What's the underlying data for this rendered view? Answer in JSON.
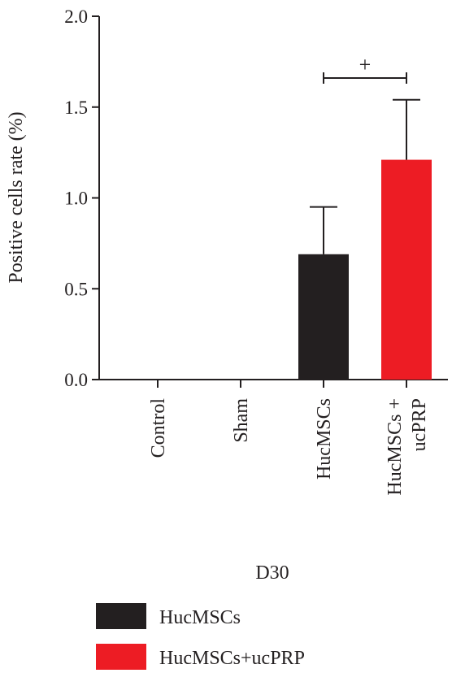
{
  "chart_data": {
    "type": "bar",
    "ylabel": "Positive cells rate (%)",
    "xlabel": "D30",
    "ylim": [
      0,
      2.0
    ],
    "yticks": [
      "0.0",
      "0.5",
      "1.0",
      "1.5",
      "2.0"
    ],
    "categories": [
      {
        "lines": [
          "Control"
        ]
      },
      {
        "lines": [
          "Sham"
        ]
      },
      {
        "lines": [
          "HucMSCs"
        ]
      },
      {
        "lines": [
          "HucMSCs +",
          "ucPRP"
        ]
      }
    ],
    "bars": [
      {
        "category_index": 2,
        "series": "HucMSCs",
        "value": 0.69,
        "error": 0.26
      },
      {
        "category_index": 3,
        "series": "HucMSCs+ucPRP",
        "value": 1.21,
        "error": 0.33
      }
    ],
    "legend": {
      "placement": "bottom-left",
      "items": [
        {
          "label": "HucMSCs",
          "color": "#231f20"
        },
        {
          "label": "HucMSCs+ucPRP",
          "color": "#ed1c24"
        }
      ]
    },
    "annotation": {
      "text": "+",
      "between": [
        2,
        3
      ],
      "value": 1.66
    },
    "grid": false
  }
}
